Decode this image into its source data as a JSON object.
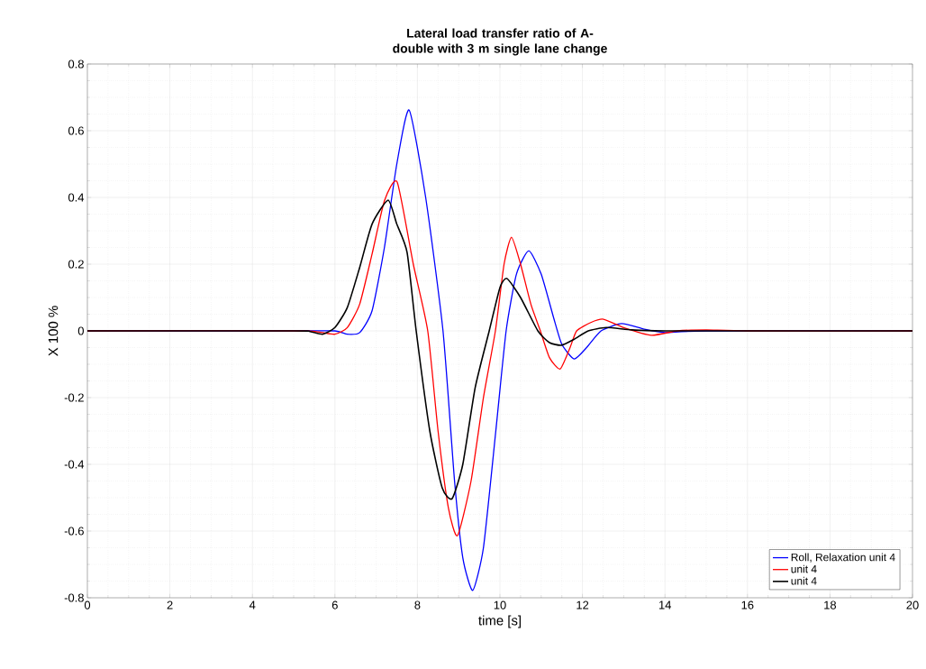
{
  "chart_data": {
    "type": "line",
    "title": "Lateral load transfer ratio of A-double with 3 m single lane change",
    "xlabel": "time [s]",
    "ylabel": "X 100 %",
    "xlim": [
      0,
      20
    ],
    "ylim": [
      -0.8,
      0.8
    ],
    "xticks": [
      0,
      2,
      4,
      6,
      8,
      10,
      12,
      14,
      16,
      18,
      20
    ],
    "yticks": [
      -0.8,
      -0.6,
      -0.4,
      -0.2,
      0,
      0.2,
      0.4,
      0.6,
      0.8
    ],
    "grid": true,
    "legend": "bottom right",
    "line_style": "solid",
    "marker": "none",
    "series": [
      {
        "name": "Roll, Relaxation unit 4",
        "color": "#0000ff",
        "x": [
          0,
          5,
          6,
          6.3,
          6.6,
          6.9,
          7.2,
          7.5,
          7.8,
          8.2,
          8.62,
          8.9,
          9.1,
          9.34,
          9.6,
          9.9,
          10.15,
          10.4,
          10.7,
          11.0,
          11.3,
          11.5,
          11.8,
          12.1,
          12.45,
          12.95,
          13.5,
          14,
          15,
          20
        ],
        "values": [
          0,
          0,
          0,
          -0.01,
          -0.005,
          0.06,
          0.25,
          0.5,
          0.662,
          0.4,
          0,
          -0.45,
          -0.68,
          -0.778,
          -0.65,
          -0.3,
          0,
          0.17,
          0.24,
          0.17,
          0.04,
          -0.04,
          -0.084,
          -0.05,
          0,
          0.022,
          0.005,
          -0.005,
          0,
          0
        ]
      },
      {
        "name": "unit 4",
        "color": "#ff0000",
        "x": [
          0,
          5,
          5.6,
          6.0,
          6.3,
          6.6,
          6.9,
          7.2,
          7.51,
          7.9,
          8.25,
          8.5,
          8.75,
          8.97,
          9.3,
          9.6,
          9.89,
          10.1,
          10.28,
          10.5,
          10.75,
          10.98,
          11.2,
          11.46,
          11.7,
          11.86,
          12.2,
          12.51,
          13,
          13.67,
          14.3,
          15,
          16,
          20
        ],
        "values": [
          0,
          0,
          -0.003,
          -0.01,
          0.01,
          0.08,
          0.23,
          0.39,
          0.446,
          0.2,
          0,
          -0.3,
          -0.53,
          -0.614,
          -0.45,
          -0.2,
          0,
          0.2,
          0.281,
          0.2,
          0.08,
          0,
          -0.08,
          -0.114,
          -0.05,
          0,
          0.025,
          0.035,
          0.01,
          -0.013,
          0,
          0.003,
          0,
          0
        ]
      },
      {
        "name": "unit 4",
        "color": "#000000",
        "x": [
          0,
          5,
          5.4,
          5.7,
          6.0,
          6.3,
          6.6,
          6.9,
          7.29,
          7.5,
          7.75,
          7.97,
          8.3,
          8.6,
          8.84,
          9.1,
          9.4,
          9.74,
          10.0,
          10.17,
          10.5,
          10.92,
          11.2,
          11.49,
          11.8,
          12.14,
          12.58,
          13.2,
          14,
          20
        ],
        "values": [
          0,
          0,
          -0.002,
          -0.01,
          0.01,
          0.07,
          0.19,
          0.32,
          0.392,
          0.32,
          0.235,
          0,
          -0.3,
          -0.47,
          -0.503,
          -0.4,
          -0.17,
          0,
          0.13,
          0.157,
          0.1,
          0,
          -0.035,
          -0.043,
          -0.025,
          0,
          0.01,
          0.003,
          0,
          0
        ]
      }
    ]
  }
}
